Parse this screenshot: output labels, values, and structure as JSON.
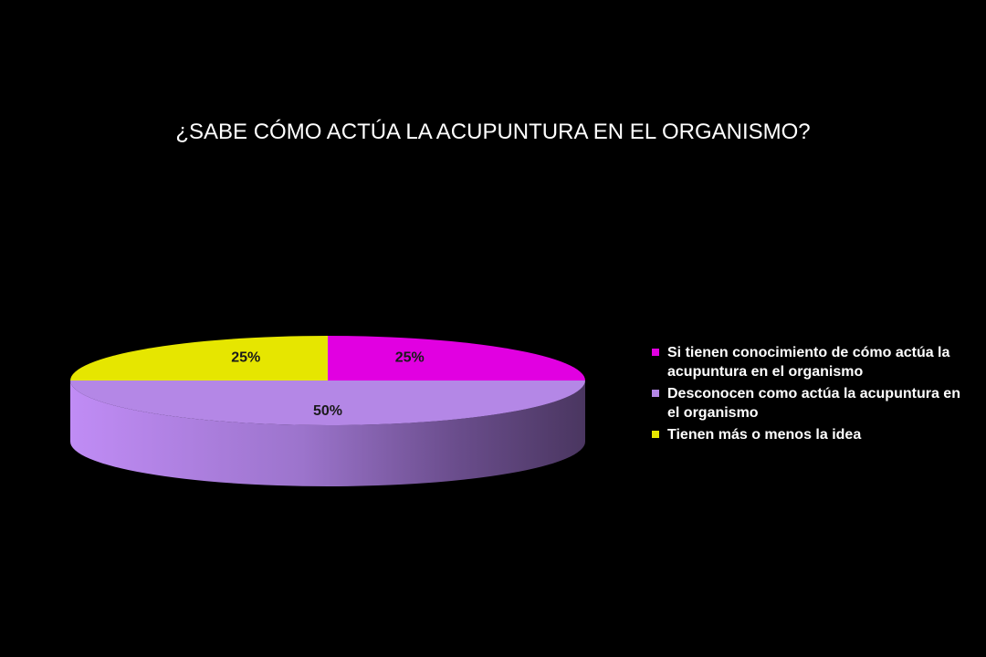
{
  "chart_data": {
    "type": "pie",
    "title": "¿SABE CÓMO ACTÚA LA ACUPUNTURA EN EL ORGANISMO?",
    "legend_position": "right",
    "slices": [
      {
        "name": "Si tienen conocimiento de cómo actúa la acupuntura en el organismo",
        "value": 25,
        "label": "25%",
        "color": "#e100e1"
      },
      {
        "name": "Desconocen como actúa la acupuntura en el organismo",
        "value": 50,
        "label": "50%",
        "color": "#b487e6"
      },
      {
        "name": "Tienen más o menos la idea",
        "value": 25,
        "label": "25%",
        "color": "#e6e600"
      }
    ]
  },
  "colors": {
    "background": "#000000",
    "text": "#ffffff"
  }
}
